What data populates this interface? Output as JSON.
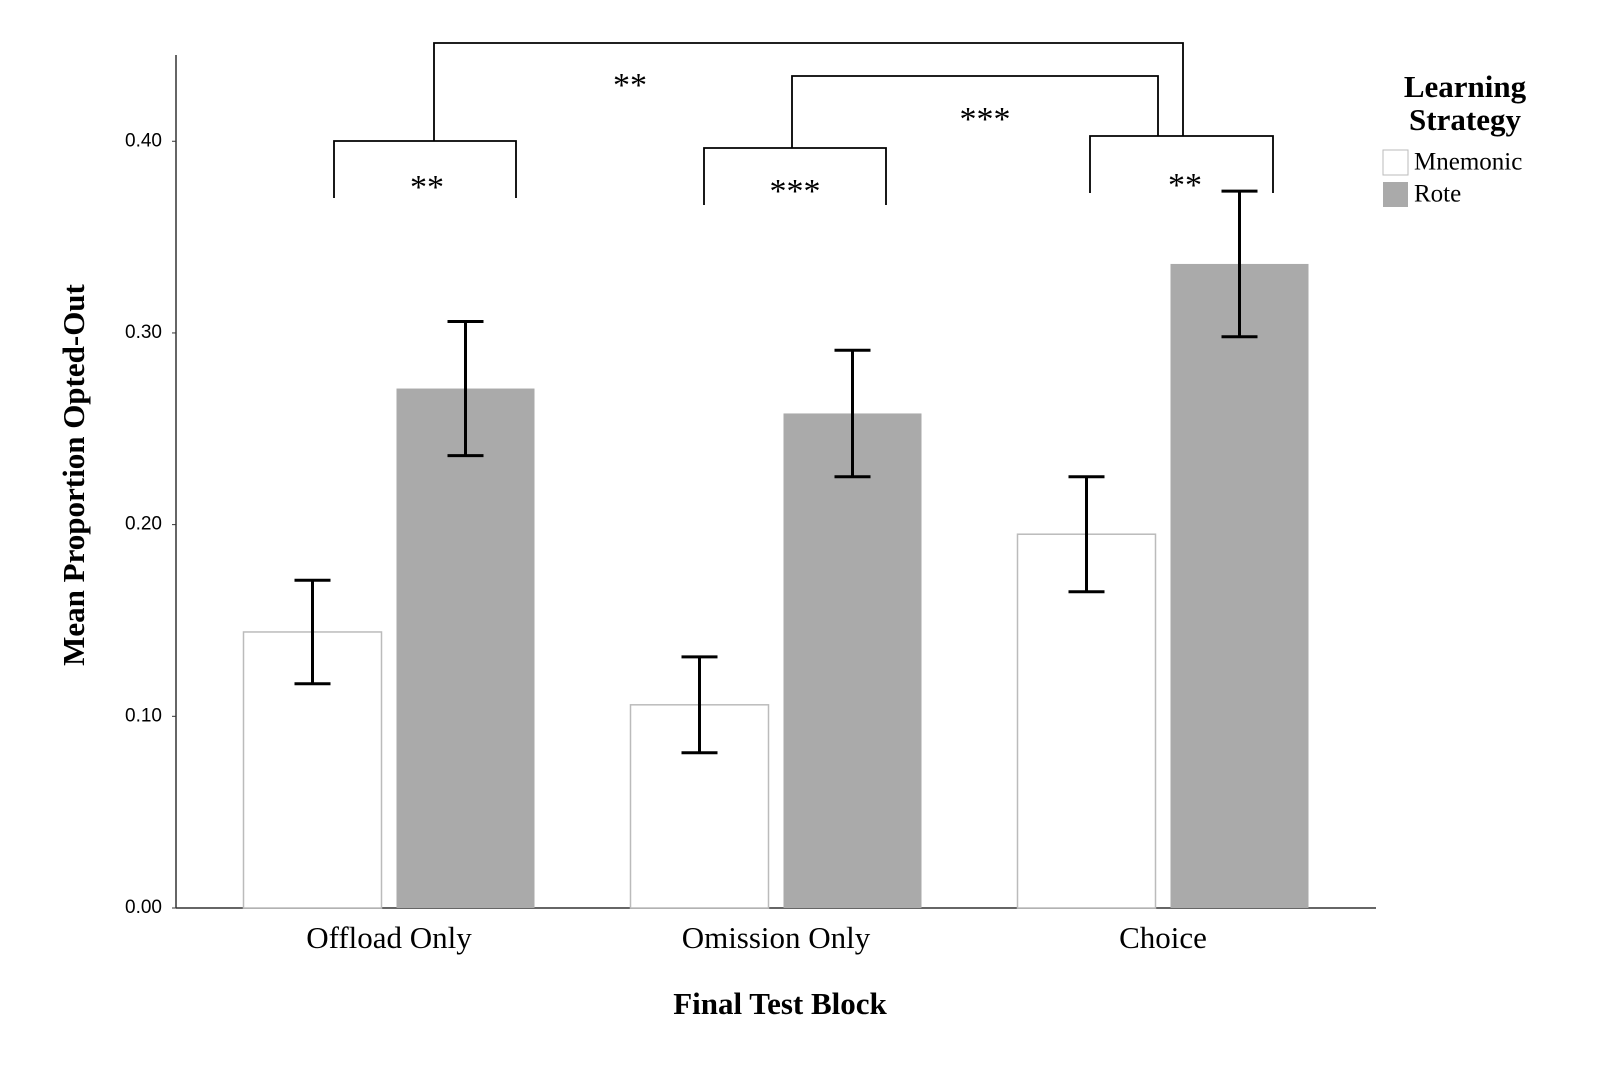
{
  "chart_data": {
    "type": "bar",
    "x_label": "Final Test Block",
    "y_label": "Mean Proportion Opted-Out",
    "categories": [
      "Offload Only",
      "Omission Only",
      "Choice"
    ],
    "series": [
      {
        "name": "Mnemonic",
        "color": "#ffffff",
        "values": [
          0.144,
          0.106,
          0.195
        ],
        "errors": [
          0.027,
          0.025,
          0.03
        ]
      },
      {
        "name": "Rote",
        "color": "#aaaaaa",
        "values": [
          0.271,
          0.258,
          0.336
        ],
        "errors": [
          0.035,
          0.033,
          0.038
        ]
      }
    ],
    "ylim": [
      0,
      0.445
    ],
    "yticks": [
      {
        "value": 0,
        "label": "0.00"
      },
      {
        "value": 0.1,
        "label": "0.10"
      },
      {
        "value": 0.2,
        "label": "0.20"
      },
      {
        "value": 0.3,
        "label": "0.30"
      },
      {
        "value": 0.4,
        "label": "0.40"
      }
    ],
    "grid": false,
    "legend_title": "Learning Strategy",
    "legend_position": "upper right",
    "annotations": [
      {
        "text": "**"
      },
      {
        "text": "***"
      },
      {
        "text": "**"
      },
      {
        "text": "**"
      },
      {
        "text": "***"
      }
    ]
  }
}
